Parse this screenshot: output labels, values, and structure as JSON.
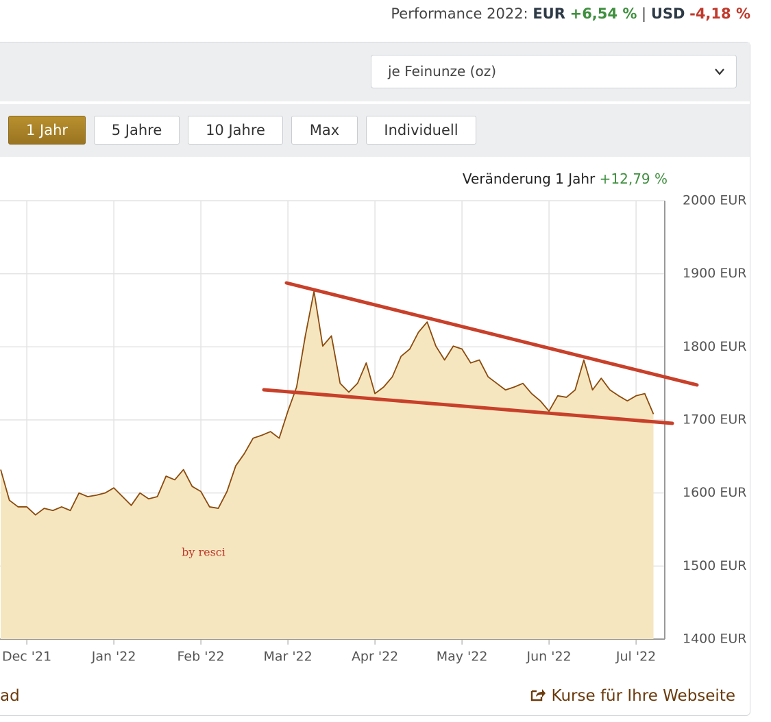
{
  "header": {
    "performance_label": "Performance 2022:",
    "eur_label": "EUR",
    "eur_value": "+6,54 %",
    "separator": "|",
    "usd_label": "USD",
    "usd_value": "-4,18 %"
  },
  "unit_select": "je Feinunze (oz)",
  "ranges": [
    "1 Jahr",
    "5 Jahre",
    "10 Jahre",
    "Max",
    "Individuell"
  ],
  "change": {
    "label": "Veränderung 1 Jahr",
    "value": "+12,79 %"
  },
  "chart_data": {
    "type": "area",
    "categories": [
      null,
      null,
      null,
      "Dec '21",
      null,
      null,
      null,
      null,
      null,
      null,
      null,
      null,
      null,
      "Jan '22",
      null,
      null,
      null,
      null,
      null,
      null,
      null,
      null,
      null,
      "Feb '22",
      null,
      null,
      null,
      null,
      null,
      null,
      null,
      null,
      null,
      "Mar '22",
      null,
      null,
      null,
      null,
      null,
      null,
      null,
      null,
      null,
      "Apr '22",
      null,
      null,
      null,
      null,
      null,
      null,
      null,
      null,
      null,
      "May '22",
      null,
      null,
      null,
      null,
      null,
      null,
      null,
      null,
      null,
      "Jun '22",
      null,
      null,
      null,
      null,
      null,
      null,
      null,
      null,
      null,
      "Jul '22",
      null,
      null
    ],
    "values": [
      1632,
      1590,
      1581,
      1581,
      1570,
      1579,
      1576,
      1581,
      1576,
      1600,
      1595,
      1597,
      1600,
      1607,
      1595,
      1583,
      1600,
      1592,
      1595,
      1623,
      1618,
      1632,
      1609,
      1602,
      1581,
      1579,
      1602,
      1637,
      1654,
      1675,
      1679,
      1684,
      1675,
      1712,
      1745,
      1815,
      1876,
      1801,
      1815,
      1750,
      1738,
      1750,
      1778,
      1736,
      1745,
      1759,
      1787,
      1797,
      1820,
      1834,
      1801,
      1782,
      1801,
      1797,
      1778,
      1782,
      1759,
      1750,
      1741,
      1745,
      1750,
      1736,
      1726,
      1712,
      1733,
      1731,
      1741,
      1782,
      1741,
      1757,
      1741,
      1733,
      1726,
      1733,
      1736,
      1708
    ],
    "color": "#8b4a0c",
    "fill": "#f5e6c0",
    "ylim": [
      1400,
      2000
    ],
    "yticks": [
      {
        "value": 1400,
        "label": "1400 EUR"
      },
      {
        "value": 1500,
        "label": "1500 EUR"
      },
      {
        "value": 1600,
        "label": "1600 EUR"
      },
      {
        "value": 1700,
        "label": "1700 EUR"
      },
      {
        "value": 1800,
        "label": "1800 EUR"
      },
      {
        "value": 1900,
        "label": "1900 EUR"
      },
      {
        "value": 2000,
        "label": "2000 EUR"
      }
    ],
    "grid": true,
    "annotation": "by resci"
  },
  "footer": {
    "left": "ad",
    "right": "Kurse für Ihre Webseite"
  }
}
